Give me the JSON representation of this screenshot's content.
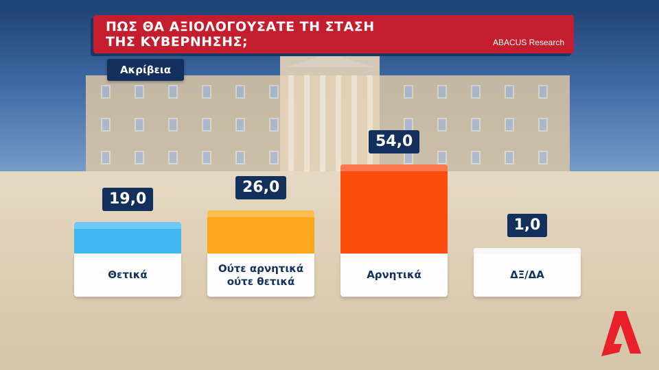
{
  "header": {
    "title_line1": "ΠΩΣ ΘΑ ΑΞΙΟΛΟΓΟΥΣΑΤΕ ΤΗ ΣΤΑΣΗ",
    "title_line2": "ΤΗΣ ΚΥΒΕΡΝΗΣΗΣ;",
    "source": "ABACUS Research",
    "subtitle": "Ακρίβεια"
  },
  "chart_data": {
    "type": "bar",
    "title": "ΠΩΣ ΘΑ ΑΞΙΟΛΟΓΟΥΣΑΤΕ ΤΗ ΣΤΑΣΗ ΤΗΣ ΚΥΒΕΡΝΗΣΗΣ;",
    "subtitle": "Ακρίβεια",
    "categories": [
      "Θετικά",
      "Ούτε αρνητικά ούτε θετικά",
      "Αρνητικά",
      "ΔΞ/ΔΑ"
    ],
    "category_lines": [
      [
        "Θετικά"
      ],
      [
        "Ούτε αρνητικά",
        "ούτε θετικά"
      ],
      [
        "Αρνητικά"
      ],
      [
        "ΔΞ/ΔΑ"
      ]
    ],
    "values": [
      19.0,
      26.0,
      54.0,
      1.0
    ],
    "value_labels": [
      "19,0",
      "26,0",
      "54,0",
      "1,0"
    ],
    "colors": [
      "#3fb8ef",
      "#fba91a",
      "#fc4d0f",
      "#f4f4f4"
    ],
    "ylim": [
      0,
      54
    ],
    "grid": false,
    "legend": "none"
  },
  "logo": {
    "name": "alpha-logo-icon",
    "color": "#e8202a"
  }
}
